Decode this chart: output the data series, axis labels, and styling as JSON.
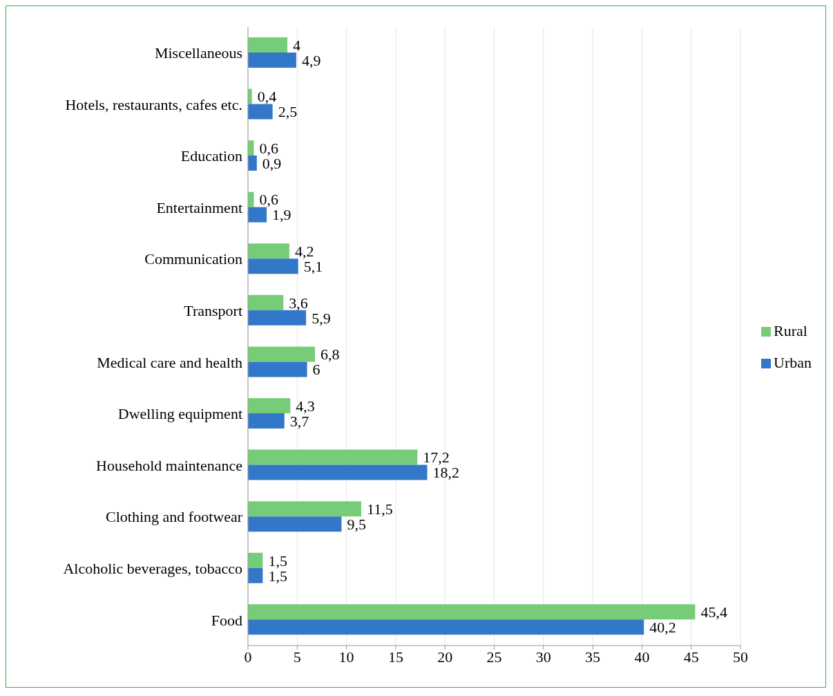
{
  "chart_data": {
    "type": "bar",
    "orientation": "horizontal",
    "categories": [
      "Miscellaneous",
      "Hotels, restaurants, cafes etc.",
      "Education",
      "Entertainment",
      "Communication",
      "Transport",
      "Medical care and health",
      "Dwelling equipment",
      "Household maintenance",
      "Clothing and footwear",
      "Alcoholic beverages, tobacco",
      "Food"
    ],
    "series": [
      {
        "name": "Rural",
        "color": "#77cc77",
        "values": [
          4,
          0.4,
          0.6,
          0.6,
          4.2,
          3.6,
          6.8,
          4.3,
          17.2,
          11.5,
          1.5,
          45.4
        ],
        "value_labels": [
          "4",
          "0,4",
          "0,6",
          "0,6",
          "4,2",
          "3,6",
          "6,8",
          "4,3",
          "17,2",
          "11,5",
          "1,5",
          "45,4"
        ]
      },
      {
        "name": "Urban",
        "color": "#3378c8",
        "values": [
          4.9,
          2.5,
          0.9,
          1.9,
          5.1,
          5.9,
          6,
          3.7,
          18.2,
          9.5,
          1.5,
          40.2
        ],
        "value_labels": [
          "4,9",
          "2,5",
          "0,9",
          "1,9",
          "5,1",
          "5,9",
          "6",
          "3,7",
          "18,2",
          "9,5",
          "1,5",
          "40,2"
        ]
      }
    ],
    "xlim": [
      0,
      50
    ],
    "xticks": [
      0,
      5,
      10,
      15,
      20,
      25,
      30,
      35,
      40,
      45,
      50
    ],
    "grid": "x",
    "legend": "right"
  }
}
